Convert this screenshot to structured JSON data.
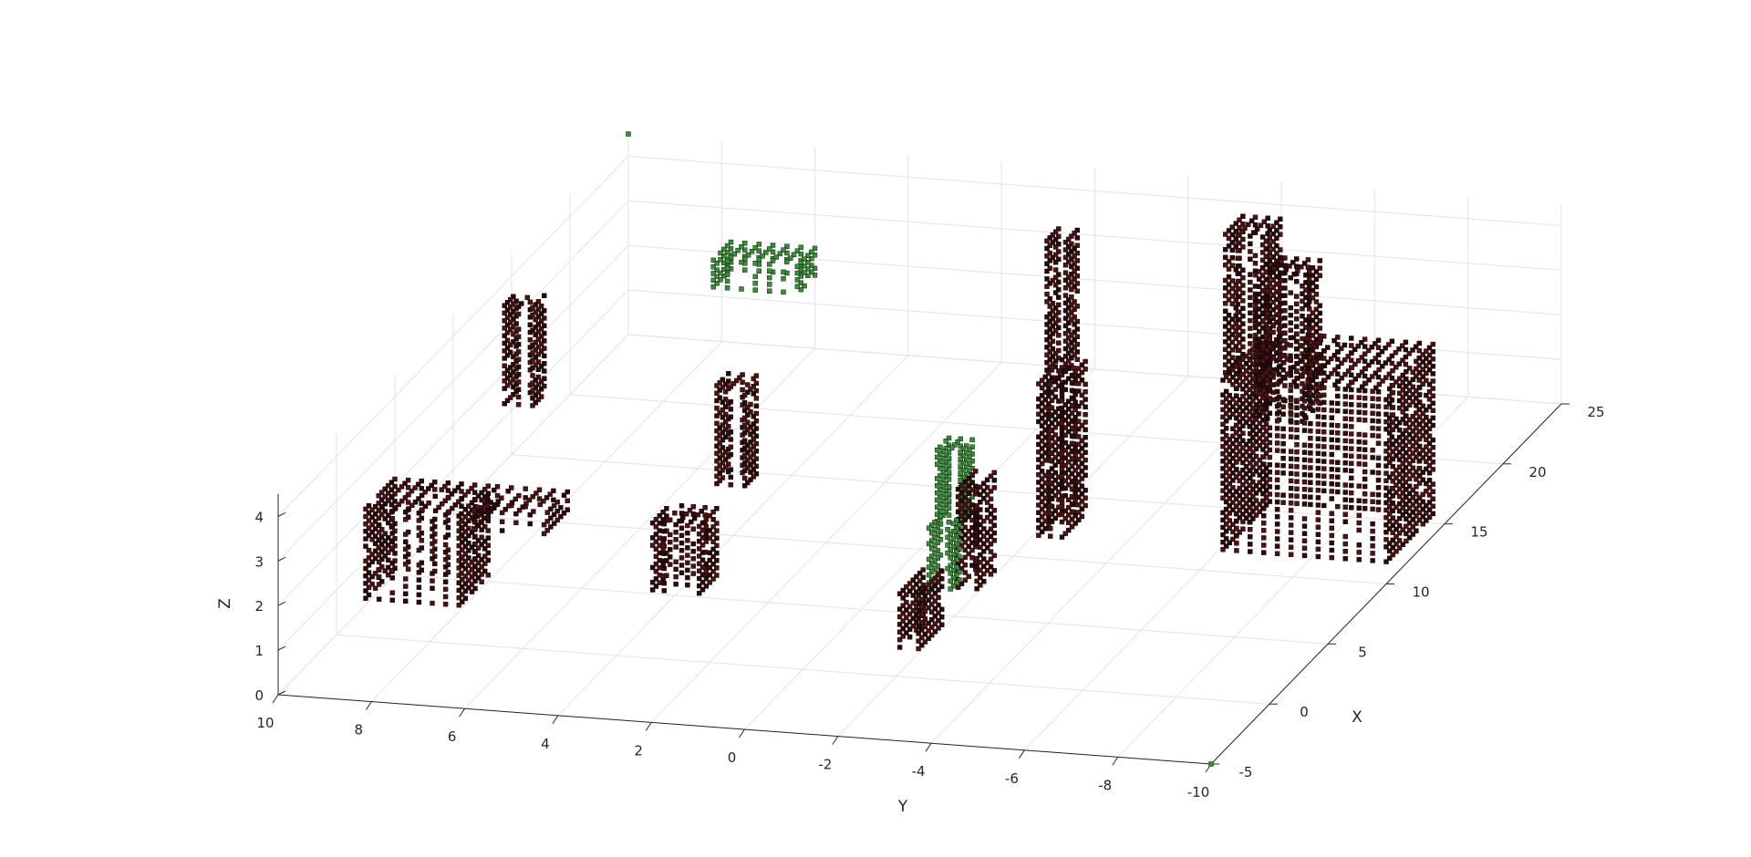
{
  "chart_data": {
    "type": "scatter3d",
    "title": "",
    "xlabel": "X",
    "ylabel": "Y",
    "zlabel": "Z",
    "xlim": [
      -5,
      25
    ],
    "ylim": [
      -10,
      10
    ],
    "zlim": [
      0,
      4.5
    ],
    "x_ticks": [
      "-5",
      "0",
      "5",
      "10",
      "15",
      "20",
      "25"
    ],
    "y_ticks": [
      "10",
      "8",
      "6",
      "4",
      "2",
      "0",
      "-2",
      "-4",
      "-6",
      "-8",
      "-10"
    ],
    "z_ticks": [
      "0",
      "1",
      "2",
      "3",
      "4"
    ],
    "grid": true,
    "colors": {
      "occupied": "#3a1010",
      "free": "#3c8c3c",
      "edge": "#000000",
      "grid": "#e3e3e3",
      "axis": "#262626"
    },
    "clusters": [
      {
        "kind": "occupied",
        "x": [
          -1.5,
          1.0
        ],
        "y": [
          7.0,
          9.0
        ],
        "z": [
          1.3,
          3.3
        ]
      },
      {
        "kind": "occupied",
        "x": [
          -1.0,
          1.0
        ],
        "y": [
          5.3,
          6.8
        ],
        "z": [
          2.9,
          3.3
        ]
      },
      {
        "kind": "occupied",
        "x": [
          1.5,
          3.0
        ],
        "y": [
          2.6,
          3.6
        ],
        "z": [
          1.1,
          2.6
        ]
      },
      {
        "kind": "occupied",
        "x": [
          7.0,
          8.0
        ],
        "y": [
          3.0,
          3.6
        ],
        "z": [
          2.0,
          4.2
        ]
      },
      {
        "kind": "occupied",
        "x": [
          12.0,
          13.0
        ],
        "y": [
          8.8,
          9.4
        ],
        "z": [
          2.0,
          4.2
        ]
      },
      {
        "kind": "free",
        "x": [
          19.5,
          21.0
        ],
        "y": [
          5.0,
          6.8
        ],
        "z": [
          2.8,
          3.4
        ]
      },
      {
        "kind": "occupied",
        "x": [
          20.5,
          21.5
        ],
        "y": [
          -0.5,
          -0.1
        ],
        "z": [
          1.2,
          4.1
        ]
      },
      {
        "kind": "free",
        "x": [
          9.5,
          10.5
        ],
        "y": [
          -1.0,
          -0.5
        ],
        "z": [
          0.8,
          2.4
        ]
      },
      {
        "kind": "occupied",
        "x": [
          21.0,
          22.5
        ],
        "y": [
          -4.6,
          -3.8
        ],
        "z": [
          1.3,
          4.4
        ]
      },
      {
        "kind": "occupied",
        "x": [
          18.0,
          19.5
        ],
        "y": [
          -6.2,
          -5.2
        ],
        "z": [
          1.2,
          4.4
        ]
      },
      {
        "kind": "occupied",
        "x": [
          9.0,
          11.0
        ],
        "y": [
          -3.3,
          -2.8
        ],
        "z": [
          0.8,
          4.2
        ]
      },
      {
        "kind": "occupied",
        "x": [
          4.5,
          6.0
        ],
        "y": [
          -2.6,
          -2.2
        ],
        "z": [
          0.8,
          3.0
        ]
      },
      {
        "kind": "free",
        "x": [
          2.0,
          3.0
        ],
        "y": [
          -2.6,
          -2.2
        ],
        "z": [
          1.4,
          2.8
        ]
      },
      {
        "kind": "occupied",
        "x": [
          -0.5,
          1.5
        ],
        "y": [
          -2.6,
          -2.2
        ],
        "z": [
          0.8,
          2.0
        ]
      },
      {
        "kind": "occupied",
        "x": [
          10.0,
          14.0
        ],
        "y": [
          -10.0,
          -6.5
        ],
        "z": [
          0.5,
          4.3
        ]
      },
      {
        "kind": "free",
        "x": [
          25.0,
          25.0
        ],
        "y": [
          10.0,
          10.0
        ],
        "z": [
          4.5,
          4.5
        ]
      },
      {
        "kind": "free",
        "x": [
          -5.0,
          -5.0
        ],
        "y": [
          -10.0,
          -10.0
        ],
        "z": [
          0.0,
          0.0
        ]
      }
    ]
  }
}
